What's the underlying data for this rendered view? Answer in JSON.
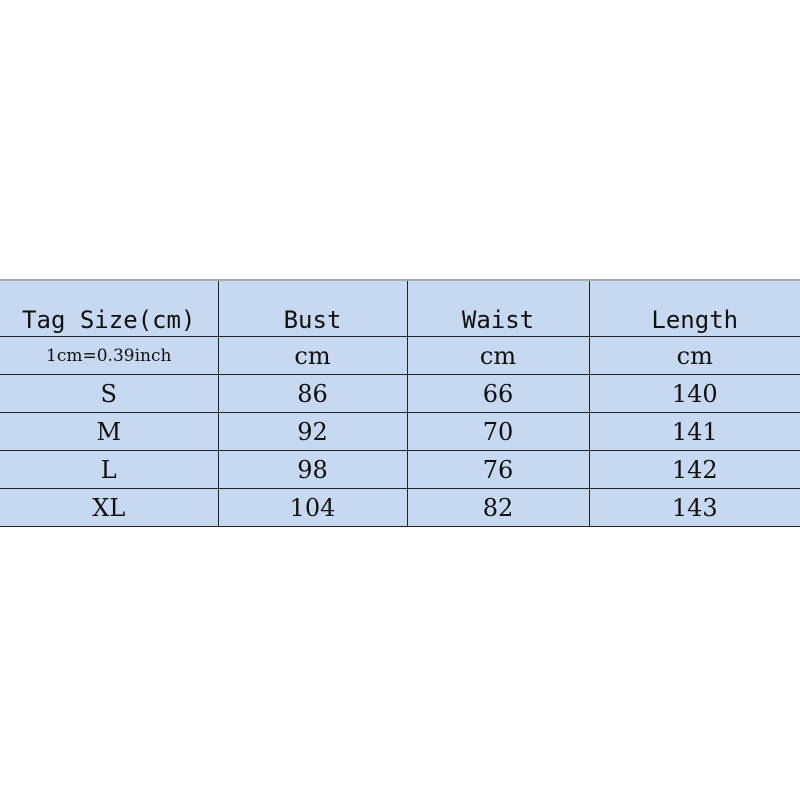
{
  "table": {
    "headers": [
      "Tag Size(cm)",
      "Bust",
      "Waist",
      "Length"
    ],
    "units": [
      "1cm=0.39inch",
      "cm",
      "cm",
      "cm"
    ],
    "rows": [
      [
        "S",
        "86",
        "66",
        "140"
      ],
      [
        "M",
        "92",
        "70",
        "141"
      ],
      [
        "L",
        "98",
        "76",
        "142"
      ],
      [
        "XL",
        "104",
        "82",
        "143"
      ]
    ]
  },
  "colors": {
    "cell_background": "#c6d9f1",
    "border": "#222222"
  }
}
